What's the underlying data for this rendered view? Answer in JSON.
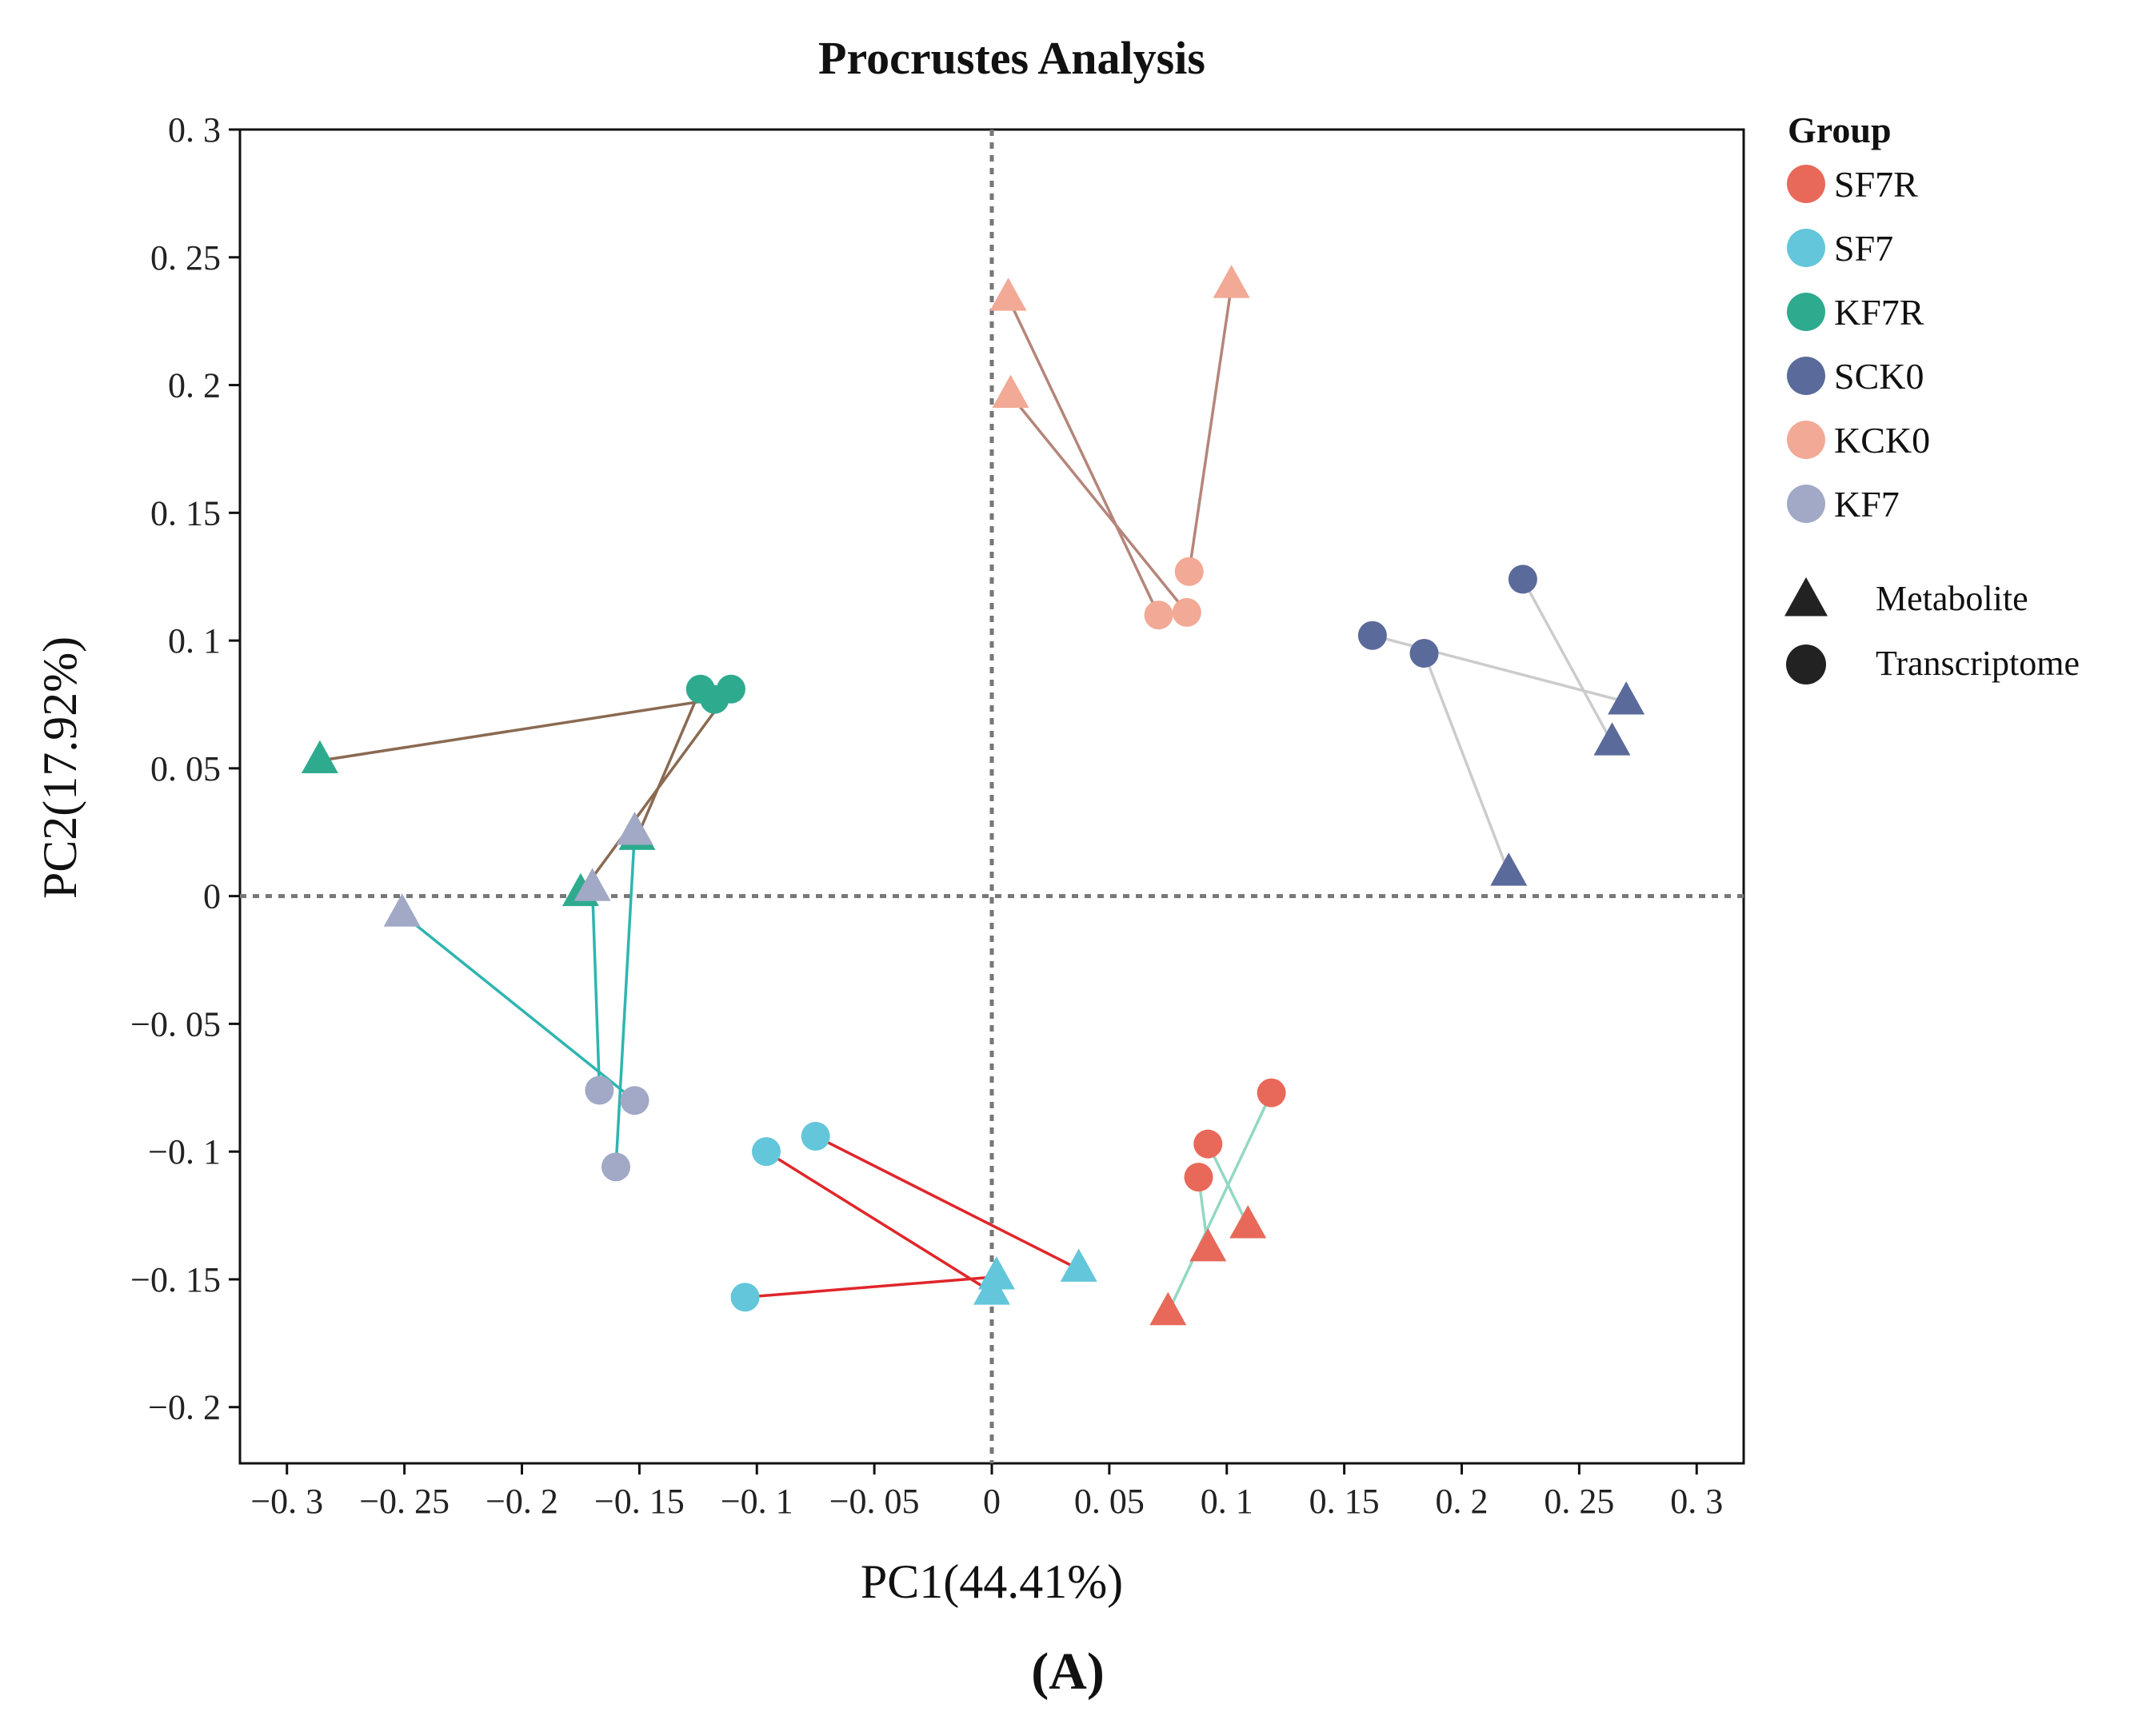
{
  "chart_data": {
    "type": "scatter",
    "title": "Procrustes Analysis",
    "xlabel": "PC1(44.41%)",
    "ylabel": "PC2(17.92%)",
    "panel_label": "(A)",
    "xlim": [
      -0.32,
      0.32
    ],
    "ylim": [
      -0.222,
      0.3
    ],
    "xticks": [
      -0.3,
      -0.25,
      -0.2,
      -0.15,
      -0.1,
      -0.05,
      0,
      0.05,
      0.1,
      0.15,
      0.2,
      0.25,
      0.3
    ],
    "xtick_labels": [
      "−0. 3",
      "−0. 25",
      "−0. 2",
      "−0. 15",
      "−0. 1",
      "−0. 05",
      "0",
      "0. 05",
      "0. 1",
      "0. 15",
      "0. 2",
      "0. 25",
      "0. 3"
    ],
    "yticks": [
      -0.2,
      -0.15,
      -0.1,
      -0.05,
      0,
      0.05,
      0.1,
      0.15,
      0.2,
      0.25,
      0.3
    ],
    "ytick_labels": [
      "−0. 2",
      "−0. 15",
      "−0. 1",
      "−0. 05",
      "0",
      "0. 05",
      "0. 1",
      "0. 15",
      "0. 2",
      "0. 25",
      "0. 3"
    ],
    "reference_lines": {
      "x": 0,
      "y": 0,
      "style": "dotted",
      "color": "#777777"
    },
    "legend": {
      "title": "Group",
      "position": "right",
      "groups": [
        {
          "name": "SF7R",
          "color": "#E8695A"
        },
        {
          "name": "SF7",
          "color": "#63C6DB"
        },
        {
          "name": "KF7R",
          "color": "#2EAB8E"
        },
        {
          "name": "SCK0",
          "color": "#5A6A9A"
        },
        {
          "name": "KCK0",
          "color": "#F2A995"
        },
        {
          "name": "KF7",
          "color": "#A1A9C6"
        }
      ],
      "shapes": [
        {
          "label": "Metabolite",
          "shape": "triangle"
        },
        {
          "label": "Transcriptome",
          "shape": "circle"
        }
      ]
    },
    "series": [
      {
        "group": "SF7R",
        "color": "#E8695A",
        "line_color": "#92D8C2",
        "pairs": [
          {
            "metabolite": [
              0.075,
              -0.163
            ],
            "transcriptome": [
              0.119,
              -0.077
            ]
          },
          {
            "metabolite": [
              0.092,
              -0.138
            ],
            "transcriptome": [
              0.088,
              -0.11
            ]
          },
          {
            "metabolite": [
              0.109,
              -0.129
            ],
            "transcriptome": [
              0.092,
              -0.097
            ]
          }
        ]
      },
      {
        "group": "SF7",
        "color": "#63C6DB",
        "line_color": "#E0262A",
        "pairs": [
          {
            "metabolite": [
              0.037,
              -0.146
            ],
            "transcriptome": [
              -0.075,
              -0.094
            ]
          },
          {
            "metabolite": [
              0.002,
              -0.149
            ],
            "transcriptome": [
              -0.105,
              -0.157
            ]
          },
          {
            "metabolite": [
              0.0,
              -0.155
            ],
            "transcriptome": [
              -0.096,
              -0.1
            ]
          }
        ]
      },
      {
        "group": "KF7R",
        "color": "#2EAB8E",
        "line_color": "#8A6A52",
        "pairs": [
          {
            "metabolite": [
              -0.286,
              0.053
            ],
            "transcriptome": [
              -0.118,
              0.077
            ]
          },
          {
            "metabolite": [
              -0.175,
              0.001
            ],
            "transcriptome": [
              -0.111,
              0.081
            ]
          },
          {
            "metabolite": [
              -0.151,
              0.023
            ],
            "transcriptome": [
              -0.124,
              0.081
            ]
          }
        ]
      },
      {
        "group": "SCK0",
        "color": "#5A6A9A",
        "line_color": "#CCCCCC",
        "pairs": [
          {
            "metabolite": [
              0.27,
              0.076
            ],
            "transcriptome": [
              0.162,
              0.102
            ]
          },
          {
            "metabolite": [
              0.264,
              0.06
            ],
            "transcriptome": [
              0.226,
              0.124
            ]
          },
          {
            "metabolite": [
              0.22,
              0.009
            ],
            "transcriptome": [
              0.184,
              0.095
            ]
          }
        ]
      },
      {
        "group": "KCK0",
        "color": "#F2A995",
        "line_color": "#B5857A",
        "pairs": [
          {
            "metabolite": [
              0.007,
              0.234
            ],
            "transcriptome": [
              0.071,
              0.11
            ]
          },
          {
            "metabolite": [
              0.008,
              0.196
            ],
            "transcriptome": [
              0.083,
              0.111
            ]
          },
          {
            "metabolite": [
              0.102,
              0.239
            ],
            "transcriptome": [
              0.084,
              0.127
            ]
          }
        ]
      },
      {
        "group": "KF7",
        "color": "#A1A9C6",
        "line_color": "#2FB5B0",
        "pairs": [
          {
            "metabolite": [
              -0.251,
              -0.007
            ],
            "transcriptome": [
              -0.152,
              -0.08
            ]
          },
          {
            "metabolite": [
              -0.17,
              0.003
            ],
            "transcriptome": [
              -0.167,
              -0.076
            ]
          },
          {
            "metabolite": [
              -0.152,
              0.025
            ],
            "transcriptome": [
              -0.16,
              -0.106
            ]
          }
        ]
      }
    ]
  }
}
